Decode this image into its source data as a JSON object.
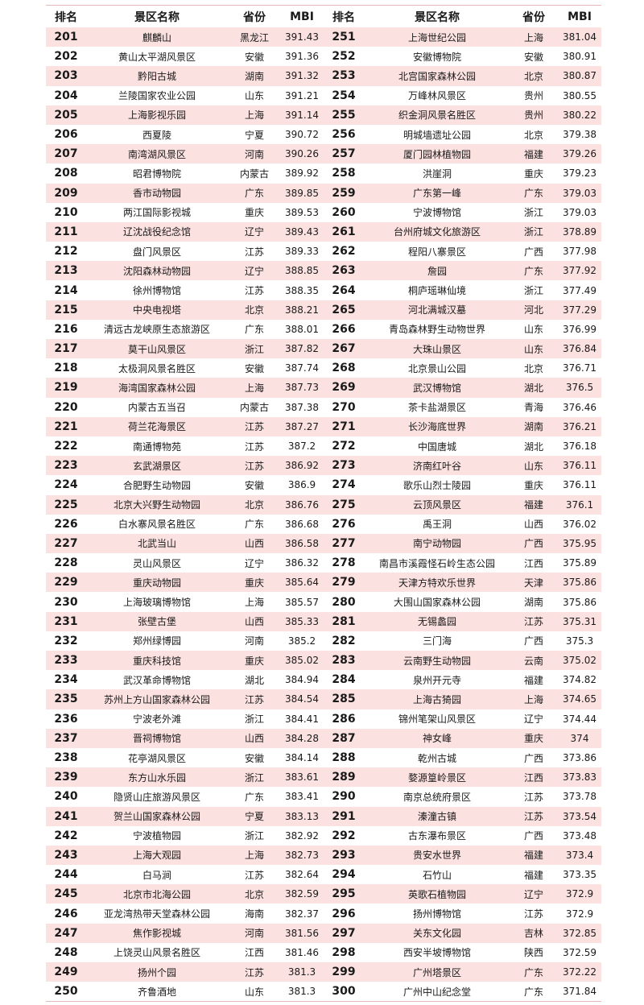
{
  "header": {
    "rank": "排名",
    "name": "景区名称",
    "province": "省份",
    "mbi": "MBI"
  },
  "row_color": "#fbe1e0",
  "left": [
    [
      "201",
      "麒麟山",
      "黑龙江",
      "391.43"
    ],
    [
      "202",
      "黄山太平湖风景区",
      "安徽",
      "391.36"
    ],
    [
      "203",
      "黔阳古城",
      "湖南",
      "391.32"
    ],
    [
      "204",
      "兰陵国家农业公园",
      "山东",
      "391.21"
    ],
    [
      "205",
      "上海影视乐园",
      "上海",
      "391.14"
    ],
    [
      "206",
      "西夏陵",
      "宁夏",
      "390.72"
    ],
    [
      "207",
      "南湾湖风景区",
      "河南",
      "390.26"
    ],
    [
      "208",
      "昭君博物院",
      "内蒙古",
      "389.92"
    ],
    [
      "209",
      "香市动物园",
      "广东",
      "389.85"
    ],
    [
      "210",
      "两江国际影视城",
      "重庆",
      "389.53"
    ],
    [
      "211",
      "辽沈战役纪念馆",
      "辽宁",
      "389.43"
    ],
    [
      "212",
      "盘门风景区",
      "江苏",
      "389.33"
    ],
    [
      "213",
      "沈阳森林动物园",
      "辽宁",
      "388.85"
    ],
    [
      "214",
      "徐州博物馆",
      "江苏",
      "388.35"
    ],
    [
      "215",
      "中央电视塔",
      "北京",
      "388.21"
    ],
    [
      "216",
      "清远古龙峡原生态旅游区",
      "广东",
      "388.01"
    ],
    [
      "217",
      "莫干山风景区",
      "浙江",
      "387.82"
    ],
    [
      "218",
      "太极洞风景名胜区",
      "安徽",
      "387.74"
    ],
    [
      "219",
      "海湾国家森林公园",
      "上海",
      "387.73"
    ],
    [
      "220",
      "内蒙古五当召",
      "内蒙古",
      "387.38"
    ],
    [
      "221",
      "荷兰花海景区",
      "江苏",
      "387.27"
    ],
    [
      "222",
      "南通博物苑",
      "江苏",
      "387.2"
    ],
    [
      "223",
      "玄武湖景区",
      "江苏",
      "386.92"
    ],
    [
      "224",
      "合肥野生动物园",
      "安徽",
      "386.9"
    ],
    [
      "225",
      "北京大兴野生动物园",
      "北京",
      "386.76"
    ],
    [
      "226",
      "白水寨风景名胜区",
      "广东",
      "386.68"
    ],
    [
      "227",
      "北武当山",
      "山西",
      "386.58"
    ],
    [
      "228",
      "灵山风景区",
      "辽宁",
      "386.32"
    ],
    [
      "229",
      "重庆动物园",
      "重庆",
      "385.64"
    ],
    [
      "230",
      "上海玻璃博物馆",
      "上海",
      "385.57"
    ],
    [
      "231",
      "张壁古堡",
      "山西",
      "385.33"
    ],
    [
      "232",
      "郑州绿博园",
      "河南",
      "385.2"
    ],
    [
      "233",
      "重庆科技馆",
      "重庆",
      "385.02"
    ],
    [
      "234",
      "武汉革命博物馆",
      "湖北",
      "384.94"
    ],
    [
      "235",
      "苏州上方山国家森林公园",
      "江苏",
      "384.54"
    ],
    [
      "236",
      "宁波老外滩",
      "浙江",
      "384.41"
    ],
    [
      "237",
      "晋祠博物馆",
      "山西",
      "384.28"
    ],
    [
      "238",
      "花亭湖风景区",
      "安徽",
      "384.14"
    ],
    [
      "239",
      "东方山水乐园",
      "浙江",
      "383.61"
    ],
    [
      "240",
      "隐贤山庄旅游风景区",
      "广东",
      "383.41"
    ],
    [
      "241",
      "贺兰山国家森林公园",
      "宁夏",
      "383.13"
    ],
    [
      "242",
      "宁波植物园",
      "浙江",
      "382.92"
    ],
    [
      "243",
      "上海大观园",
      "上海",
      "382.73"
    ],
    [
      "244",
      "白马涧",
      "江苏",
      "382.64"
    ],
    [
      "245",
      "北京市北海公园",
      "北京",
      "382.59"
    ],
    [
      "246",
      "亚龙湾热带天堂森林公园",
      "海南",
      "382.37"
    ],
    [
      "247",
      "焦作影视城",
      "河南",
      "381.56"
    ],
    [
      "248",
      "上饶灵山风景名胜区",
      "江西",
      "381.46"
    ],
    [
      "249",
      "扬州个园",
      "江苏",
      "381.3"
    ],
    [
      "250",
      "齐鲁酒地",
      "山东",
      "381.3"
    ]
  ],
  "right": [
    [
      "251",
      "上海世纪公园",
      "上海",
      "381.04"
    ],
    [
      "252",
      "安徽博物院",
      "安徽",
      "380.91"
    ],
    [
      "253",
      "北宫国家森林公园",
      "北京",
      "380.87"
    ],
    [
      "254",
      "万峰林风景区",
      "贵州",
      "380.55"
    ],
    [
      "255",
      "织金洞风景名胜区",
      "贵州",
      "380.22"
    ],
    [
      "256",
      "明城墙遗址公园",
      "北京",
      "379.38"
    ],
    [
      "257",
      "厦门园林植物园",
      "福建",
      "379.26"
    ],
    [
      "258",
      "洪崖洞",
      "重庆",
      "379.23"
    ],
    [
      "259",
      "广东第一峰",
      "广东",
      "379.03"
    ],
    [
      "260",
      "宁波博物馆",
      "浙江",
      "379.03"
    ],
    [
      "261",
      "台州府城文化旅游区",
      "浙江",
      "378.89"
    ],
    [
      "262",
      "程阳八寨景区",
      "广西",
      "377.98"
    ],
    [
      "263",
      "詹园",
      "广东",
      "377.92"
    ],
    [
      "264",
      "桐庐瑶琳仙境",
      "浙江",
      "377.49"
    ],
    [
      "265",
      "河北满城汉墓",
      "河北",
      "377.29"
    ],
    [
      "266",
      "青岛森林野生动物世界",
      "山东",
      "376.99"
    ],
    [
      "267",
      "大珠山景区",
      "山东",
      "376.84"
    ],
    [
      "268",
      "北京景山公园",
      "北京",
      "376.71"
    ],
    [
      "269",
      "武汉博物馆",
      "湖北",
      "376.5"
    ],
    [
      "270",
      "茶卡盐湖景区",
      "青海",
      "376.46"
    ],
    [
      "271",
      "长沙海底世界",
      "湖南",
      "376.21"
    ],
    [
      "272",
      "中国唐城",
      "湖北",
      "376.18"
    ],
    [
      "273",
      "济南红叶谷",
      "山东",
      "376.11"
    ],
    [
      "274",
      "歌乐山烈士陵园",
      "重庆",
      "376.11"
    ],
    [
      "275",
      "云顶风景区",
      "福建",
      "376.1"
    ],
    [
      "276",
      "禹王洞",
      "山西",
      "376.02"
    ],
    [
      "277",
      "南宁动物园",
      "广西",
      "375.95"
    ],
    [
      "278",
      "南昌市溪霞怪石岭生态公园",
      "江西",
      "375.89"
    ],
    [
      "279",
      "天津方特欢乐世界",
      "天津",
      "375.86"
    ],
    [
      "280",
      "大围山国家森林公园",
      "湖南",
      "375.86"
    ],
    [
      "281",
      "无锡蠡园",
      "江苏",
      "375.31"
    ],
    [
      "282",
      "三门海",
      "广西",
      "375.3"
    ],
    [
      "283",
      "云南野生动物园",
      "云南",
      "375.02"
    ],
    [
      "284",
      "泉州开元寺",
      "福建",
      "374.82"
    ],
    [
      "285",
      "上海古猗园",
      "上海",
      "374.65"
    ],
    [
      "286",
      "锦州笔架山风景区",
      "辽宁",
      "374.44"
    ],
    [
      "287",
      "神女峰",
      "重庆",
      "374"
    ],
    [
      "288",
      "乾州古城",
      "广西",
      "373.86"
    ],
    [
      "289",
      "婺源篁岭景区",
      "江西",
      "373.83"
    ],
    [
      "290",
      "南京总统府景区",
      "江苏",
      "373.78"
    ],
    [
      "291",
      "溱潼古镇",
      "江苏",
      "373.54"
    ],
    [
      "292",
      "古东瀑布景区",
      "广西",
      "373.48"
    ],
    [
      "293",
      "贵安水世界",
      "福建",
      "373.4"
    ],
    [
      "294",
      "石竹山",
      "福建",
      "373.35"
    ],
    [
      "295",
      "英歌石植物园",
      "辽宁",
      "372.9"
    ],
    [
      "296",
      "扬州博物馆",
      "江苏",
      "372.9"
    ],
    [
      "297",
      "关东文化园",
      "吉林",
      "372.85"
    ],
    [
      "298",
      "西安半坡博物馆",
      "陕西",
      "372.59"
    ],
    [
      "299",
      "广州塔景区",
      "广东",
      "372.22"
    ],
    [
      "300",
      "广州中山纪念堂",
      "广东",
      "371.84"
    ]
  ]
}
